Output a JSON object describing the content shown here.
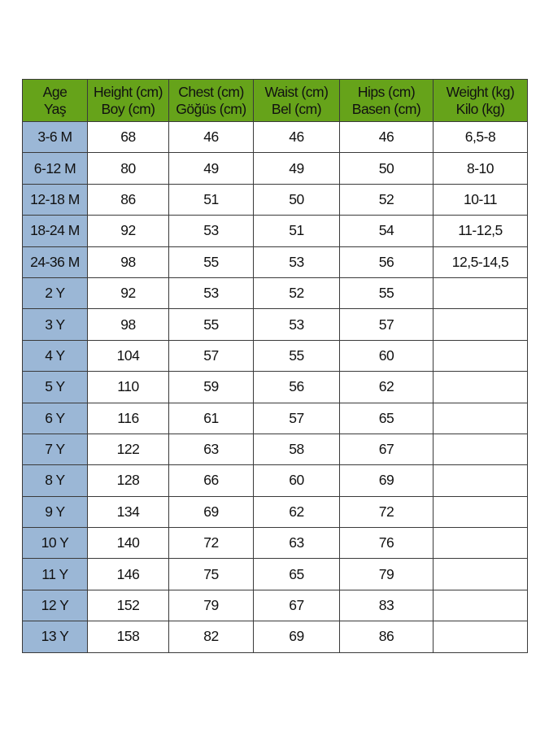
{
  "colors": {
    "header_bg": "#66a31a",
    "age_col_bg": "#9bb7d6"
  },
  "headers": [
    [
      "Age",
      "Yaş"
    ],
    [
      "Height (cm)",
      "Boy (cm)"
    ],
    [
      "Chest (cm)",
      "Göğüs (cm)"
    ],
    [
      "Waist (cm)",
      "Bel (cm)"
    ],
    [
      "Hips (cm)",
      "Basen (cm)"
    ],
    [
      "Weight (kg)",
      "Kilo (kg)"
    ]
  ],
  "rows": [
    [
      "3-6 M",
      "68",
      "46",
      "46",
      "46",
      "6,5-8"
    ],
    [
      "6-12 M",
      "80",
      "49",
      "49",
      "50",
      "8-10"
    ],
    [
      "12-18 M",
      "86",
      "51",
      "50",
      "52",
      "10-11"
    ],
    [
      "18-24 M",
      "92",
      "53",
      "51",
      "54",
      "11-12,5"
    ],
    [
      "24-36 M",
      "98",
      "55",
      "53",
      "56",
      "12,5-14,5"
    ],
    [
      "2 Y",
      "92",
      "53",
      "52",
      "55",
      ""
    ],
    [
      "3 Y",
      "98",
      "55",
      "53",
      "57",
      ""
    ],
    [
      "4 Y",
      "104",
      "57",
      "55",
      "60",
      ""
    ],
    [
      "5 Y",
      "110",
      "59",
      "56",
      "62",
      ""
    ],
    [
      "6 Y",
      "116",
      "61",
      "57",
      "65",
      ""
    ],
    [
      "7 Y",
      "122",
      "63",
      "58",
      "67",
      ""
    ],
    [
      "8 Y",
      "128",
      "66",
      "60",
      "69",
      ""
    ],
    [
      "9 Y",
      "134",
      "69",
      "62",
      "72",
      ""
    ],
    [
      "10 Y",
      "140",
      "72",
      "63",
      "76",
      ""
    ],
    [
      "11 Y",
      "146",
      "75",
      "65",
      "79",
      ""
    ],
    [
      "12 Y",
      "152",
      "79",
      "67",
      "83",
      ""
    ],
    [
      "13 Y",
      "158",
      "82",
      "69",
      "86",
      ""
    ]
  ]
}
